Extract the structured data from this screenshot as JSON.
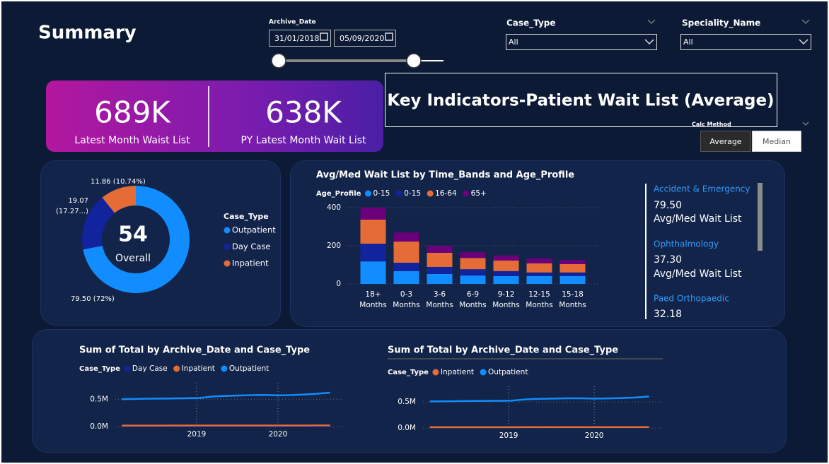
{
  "header": {
    "title": "Summary"
  },
  "filters": {
    "archive_date": {
      "label": "Archive_Date",
      "start": "31/01/2018",
      "end": "05/09/2020"
    },
    "case_type": {
      "label": "Case_Type",
      "value": "All"
    },
    "speciality": {
      "label": "Speciality_Name",
      "value": "All"
    }
  },
  "kpis": [
    {
      "value": "689K",
      "label": "Latest Month Waist List"
    },
    {
      "value": "638K",
      "label": "PY Latest Month Wait List"
    }
  ],
  "banner": "Key Indicators-Patient Wait List (Average)",
  "calc_method": {
    "label": "Calc Method",
    "options": [
      "Average",
      "Median"
    ]
  },
  "specialities": [
    {
      "name": "Accident & Emergency",
      "value": "79.50",
      "label": "Avg/Med Wait List"
    },
    {
      "name": "Ophthalmology",
      "value": "37.30",
      "label": "Avg/Med Wait List"
    },
    {
      "name": "Paed Orthopaedic",
      "value": "32.18"
    }
  ],
  "chart_data": [
    {
      "type": "pie",
      "donut": true,
      "legend_title": "Case_Type",
      "center_value": 54,
      "center_label": "Overall",
      "categories": [
        "Outpatient",
        "Day Case",
        "Inpatient"
      ],
      "values": [
        79.5,
        19.07,
        11.86
      ],
      "value_labels": [
        "79.50 (72%)",
        "19.07 (17.27...)",
        "11.86 (10.74%)"
      ],
      "colors": [
        "#118dff",
        "#12239e",
        "#e66c37"
      ]
    },
    {
      "type": "bar",
      "stacked": true,
      "title": "Avg/Med Wait List by Time_Bands and Age_Profile",
      "legend_title": "Age_Profile",
      "categories": [
        "18+ Months",
        "0-3 Months",
        "3-6 Months",
        "6-9 Months",
        "9-12 Months",
        "12-15 Months",
        "15-18 Months"
      ],
      "series": [
        {
          "name": "0-15",
          "color": "#118dff",
          "values": [
            118,
            67,
            52,
            44,
            41,
            41,
            41
          ]
        },
        {
          "name": "0-15",
          "color": "#12239e",
          "values": [
            93,
            44,
            37,
            33,
            26,
            19,
            19
          ]
        },
        {
          "name": "16-64",
          "color": "#e66c37",
          "values": [
            126,
            111,
            74,
            59,
            56,
            48,
            44
          ]
        },
        {
          "name": "65+",
          "color": "#6b007b",
          "values": [
            63,
            48,
            37,
            30,
            26,
            26,
            22
          ]
        }
      ],
      "ylim": [
        0,
        400
      ],
      "yticks": [
        0,
        200,
        400
      ],
      "grid": true
    },
    {
      "type": "line",
      "title": "Sum of Total by Archive_Date and Case_Type",
      "legend_title": "Case_Type",
      "x": [
        2018.08,
        2018.24,
        2018.4,
        2018.56,
        2018.72,
        2018.88,
        2019.04,
        2019.2,
        2019.36,
        2019.52,
        2019.68,
        2019.84,
        2020.0,
        2020.16,
        2020.32,
        2020.48,
        2020.64
      ],
      "series": [
        {
          "name": "Day Case",
          "color": "#12239e",
          "values": [
            8000,
            8000,
            8000,
            8500,
            8500,
            8500,
            9000,
            9000,
            9000,
            9000,
            9500,
            9500,
            9000,
            9000,
            9500,
            9500,
            10000
          ]
        },
        {
          "name": "Inpatient",
          "color": "#e66c37",
          "values": [
            18000,
            18000,
            18500,
            18500,
            19000,
            19000,
            19000,
            19500,
            19500,
            20000,
            20000,
            20000,
            19500,
            19500,
            20000,
            20500,
            21000
          ]
        },
        {
          "name": "Outpatient",
          "color": "#118dff",
          "values": [
            500000,
            505000,
            510000,
            512000,
            515000,
            518000,
            522000,
            550000,
            560000,
            568000,
            575000,
            578000,
            570000,
            575000,
            585000,
            600000,
            620000
          ]
        }
      ],
      "xlim": [
        2018,
        2020.8
      ],
      "xticks": [
        2019,
        2020
      ],
      "ylim": [
        0,
        800000
      ],
      "yticks": [
        {
          "value": 0,
          "label": "0.0M"
        },
        {
          "value": 500000,
          "label": "0.5M"
        }
      ],
      "grid": true
    },
    {
      "type": "line",
      "title": "Sum of Total by Archive_Date and Case_Type",
      "legend_title": "Case_Type",
      "x": [
        2018.08,
        2018.24,
        2018.4,
        2018.56,
        2018.72,
        2018.88,
        2019.04,
        2019.2,
        2019.36,
        2019.52,
        2019.68,
        2019.84,
        2020.0,
        2020.16,
        2020.32,
        2020.48,
        2020.64
      ],
      "series": [
        {
          "name": "Inpatient",
          "color": "#e66c37",
          "values": [
            15000,
            15000,
            15500,
            15500,
            16000,
            16000,
            16000,
            16500,
            16500,
            17000,
            17000,
            17000,
            16500,
            16500,
            17000,
            17500,
            18000
          ]
        },
        {
          "name": "Outpatient",
          "color": "#118dff",
          "values": [
            510000,
            512000,
            515000,
            518000,
            520000,
            522000,
            525000,
            550000,
            560000,
            565000,
            570000,
            570000,
            565000,
            568000,
            575000,
            585000,
            605000
          ]
        }
      ],
      "xlim": [
        2018,
        2020.8
      ],
      "xticks": [
        2019,
        2020
      ],
      "ylim": [
        0,
        800000
      ],
      "yticks": [
        {
          "value": 0,
          "label": "0.0M"
        },
        {
          "value": 500000,
          "label": "0.5M"
        }
      ],
      "grid": true
    }
  ]
}
